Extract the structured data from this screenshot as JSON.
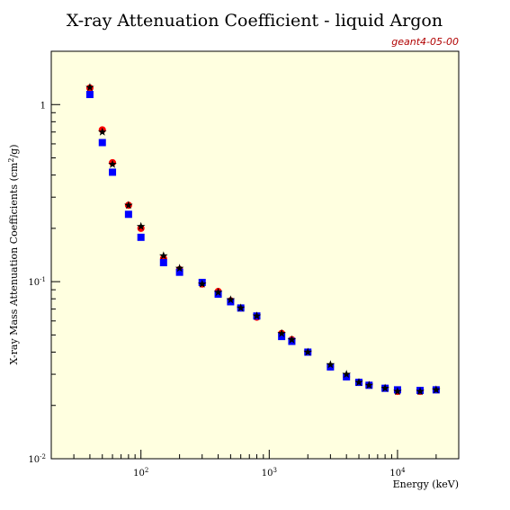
{
  "chart_data": {
    "type": "scatter",
    "title": "X-ray Attenuation Coefficient - liquid Argon",
    "tag": "geant4-05-00",
    "xlabel": "Energy (keV)",
    "ylabel_main": "X-ray Mass Attenuation Coefficients (cm",
    "ylabel_sup": "2",
    "ylabel_tail": "/g)",
    "x_scale": "log",
    "y_scale": "log",
    "xlim": [
      20,
      30000
    ],
    "ylim": [
      0.01,
      2.0
    ],
    "x_ticks": [
      {
        "value": 100,
        "base": "10",
        "exp": "2"
      },
      {
        "value": 1000,
        "base": "10",
        "exp": "3"
      },
      {
        "value": 10000,
        "base": "10",
        "exp": "4"
      }
    ],
    "y_ticks": [
      {
        "value": 0.01,
        "base": "10",
        "exp": "-2"
      },
      {
        "value": 0.1,
        "base": "10",
        "exp": "-1"
      },
      {
        "value": 1,
        "base": "1",
        "exp": ""
      }
    ],
    "grid": false,
    "background": "#ffffe0",
    "series": [
      {
        "marker": "circle",
        "color": "#ff0000",
        "x": [
          40,
          50,
          60,
          80,
          100,
          150,
          200,
          300,
          400,
          500,
          600,
          800,
          1250,
          1500,
          2000,
          3000,
          4000,
          5000,
          6000,
          8000,
          10000,
          15000,
          20000
        ],
        "y": [
          1.24,
          0.72,
          0.47,
          0.27,
          0.2,
          0.135,
          0.117,
          0.097,
          0.088,
          0.078,
          0.071,
          0.063,
          0.051,
          0.047,
          0.04,
          0.033,
          0.029,
          0.027,
          0.026,
          0.025,
          0.024,
          0.024,
          0.0245
        ]
      },
      {
        "marker": "square",
        "color": "#0000ff",
        "x": [
          40,
          50,
          60,
          80,
          100,
          150,
          200,
          300,
          400,
          500,
          600,
          800,
          1250,
          1500,
          2000,
          3000,
          4000,
          5000,
          6000,
          8000,
          10000,
          15000,
          20000
        ],
        "y": [
          1.14,
          0.61,
          0.415,
          0.24,
          0.178,
          0.128,
          0.113,
          0.099,
          0.085,
          0.077,
          0.071,
          0.064,
          0.049,
          0.046,
          0.04,
          0.033,
          0.029,
          0.027,
          0.026,
          0.025,
          0.0245,
          0.0243,
          0.0245
        ]
      },
      {
        "marker": "star",
        "color": "#000000",
        "x": [
          40,
          50,
          60,
          80,
          100,
          150,
          200,
          300,
          400,
          500,
          600,
          800,
          1250,
          1500,
          2000,
          3000,
          4000,
          5000,
          6000,
          8000,
          10000,
          15000,
          20000
        ],
        "y": [
          1.25,
          0.7,
          0.46,
          0.27,
          0.205,
          0.14,
          0.119,
          0.097,
          0.087,
          0.079,
          0.071,
          0.064,
          0.051,
          0.047,
          0.04,
          0.034,
          0.03,
          0.027,
          0.026,
          0.025,
          0.024,
          0.024,
          0.0245
        ]
      }
    ]
  }
}
